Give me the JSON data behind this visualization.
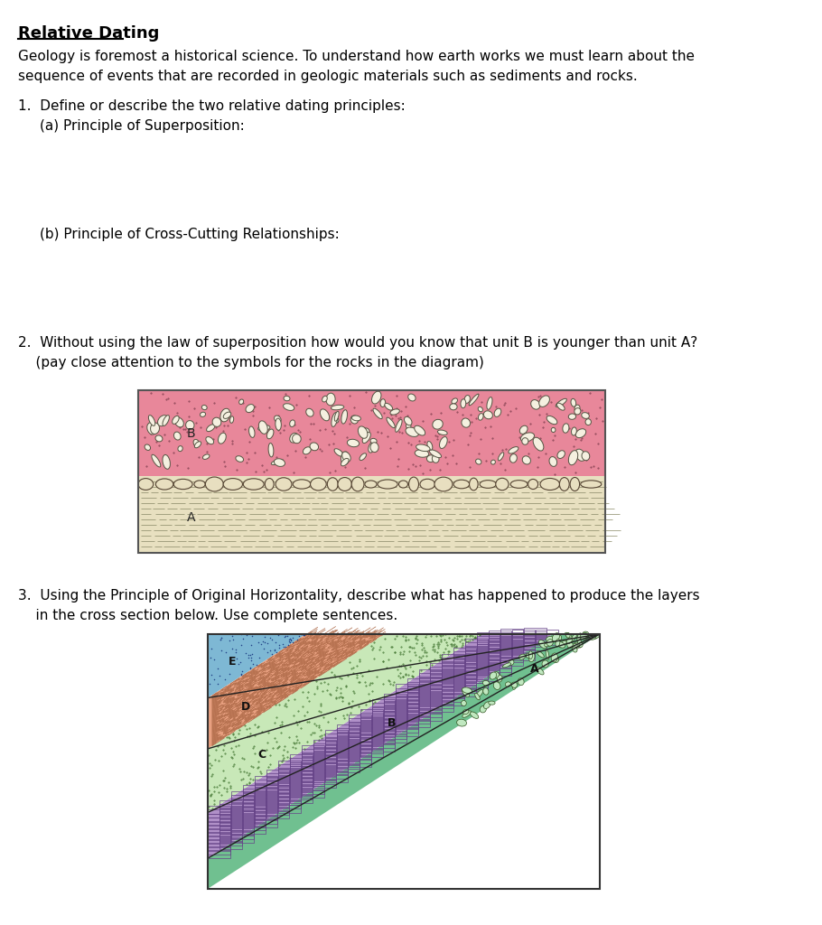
{
  "title": "Relative Dating",
  "bg_color": "#ffffff",
  "text_color": "#000000",
  "intro_text": "Geology is foremost a historical science. To understand how earth works we must learn about the\nsequence of events that are recorded in geologic materials such as sediments and rocks.",
  "q1_text": "1.  Define or describe the two relative dating principles:",
  "q1a_text": "(a) Principle of Superposition:",
  "q1b_text": "(b) Principle of Cross-Cutting Relationships:",
  "q2_text": "2.  Without using the law of superposition how would you know that unit B is younger than unit A?\n    (pay close attention to the symbols for the rocks in the diagram)",
  "q3_text": "3.  Using the Principle of Original Horizontality, describe what has happened to produce the layers\n    in the cross section below. Use complete sentences.",
  "diagram1_color_B": "#e8879a",
  "diagram1_color_A": "#e8e0c0",
  "diagram2_color_E": "#7eb8d4",
  "diagram2_color_D": "#e8a080",
  "diagram2_color_C": "#c8e8b8",
  "diagram2_color_B": "#b090c8",
  "diagram2_color_A": "#70c090"
}
